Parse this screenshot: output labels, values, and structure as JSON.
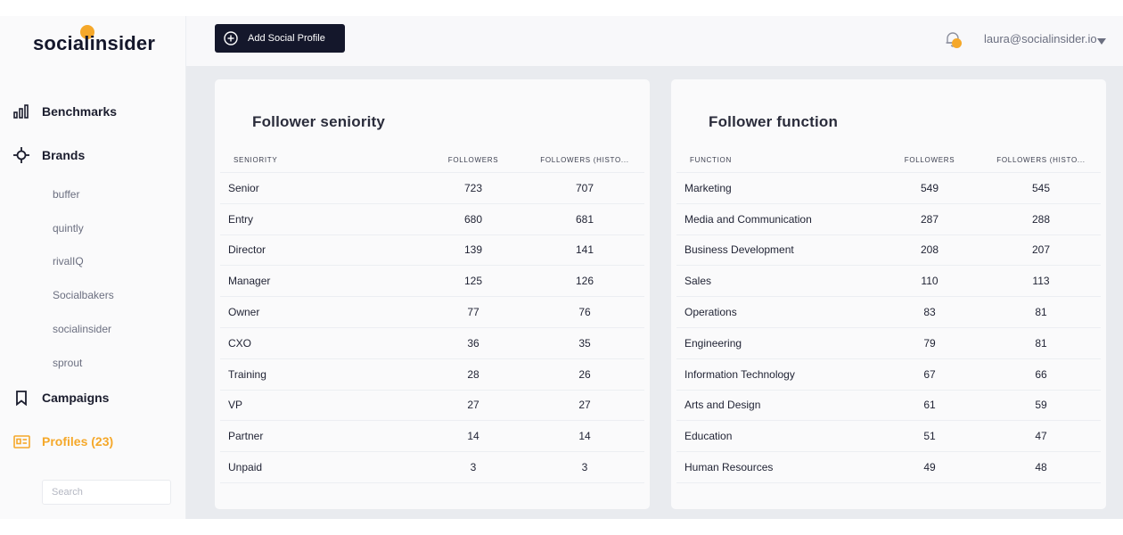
{
  "brand": {
    "logo_text": "socialinsider",
    "accent": "#f5a82a",
    "dark": "#14172b"
  },
  "sidebar": {
    "nav": [
      {
        "label": "Benchmarks",
        "icon": "bar-chart-icon"
      },
      {
        "label": "Brands",
        "icon": "crosshair-icon"
      },
      {
        "label": "Campaigns",
        "icon": "bookmark-icon"
      },
      {
        "label": "Profiles (23)",
        "icon": "id-card-icon"
      }
    ],
    "brands": [
      "buffer",
      "quintly",
      "rivalIQ",
      "Socialbakers",
      "socialinsider",
      "sprout"
    ],
    "search_placeholder": "Search"
  },
  "topbar": {
    "add_button_label": "Add Social Profile",
    "user_email": "laura@socialinsider.io"
  },
  "cards": {
    "seniority": {
      "title": "Follower seniority",
      "columns": [
        "SENIORITY",
        "FOLLOWERS",
        "FOLLOWERS (HISTO..."
      ],
      "rows": [
        [
          "Senior",
          "723",
          "707"
        ],
        [
          "Entry",
          "680",
          "681"
        ],
        [
          "Director",
          "139",
          "141"
        ],
        [
          "Manager",
          "125",
          "126"
        ],
        [
          "Owner",
          "77",
          "76"
        ],
        [
          "CXO",
          "36",
          "35"
        ],
        [
          "Training",
          "28",
          "26"
        ],
        [
          "VP",
          "27",
          "27"
        ],
        [
          "Partner",
          "14",
          "14"
        ],
        [
          "Unpaid",
          "3",
          "3"
        ]
      ]
    },
    "function": {
      "title": "Follower function",
      "columns": [
        "FUNCTION",
        "FOLLOWERS",
        "FOLLOWERS (HISTO..."
      ],
      "rows": [
        [
          "Marketing",
          "549",
          "545"
        ],
        [
          "Media and Communication",
          "287",
          "288"
        ],
        [
          "Business Development",
          "208",
          "207"
        ],
        [
          "Sales",
          "110",
          "113"
        ],
        [
          "Operations",
          "83",
          "81"
        ],
        [
          "Engineering",
          "79",
          "81"
        ],
        [
          "Information Technology",
          "67",
          "66"
        ],
        [
          "Arts and Design",
          "61",
          "59"
        ],
        [
          "Education",
          "51",
          "47"
        ],
        [
          "Human Resources",
          "49",
          "48"
        ]
      ]
    }
  }
}
